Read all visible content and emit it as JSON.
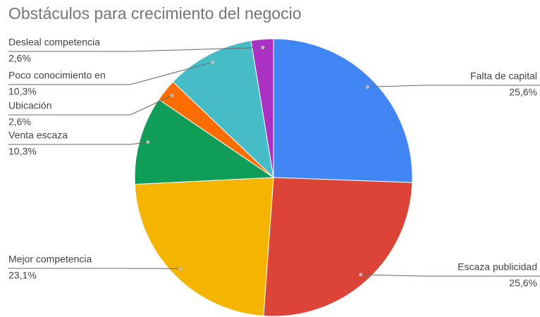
{
  "chart_data": {
    "type": "pie",
    "title": "Obstáculos para crecimiento del negocio",
    "categories": [
      "Falta de capital",
      "Escaza publicidad",
      "Mejor competencia",
      "Venta escaza",
      "Ubicación",
      "Poco conocimiento en",
      "Desleal competencia"
    ],
    "values": [
      25.6,
      25.6,
      23.1,
      10.3,
      2.6,
      10.3,
      2.6
    ],
    "value_labels": [
      "25,6%",
      "25,6%",
      "23,1%",
      "10,3%",
      "2,6%",
      "10,3%",
      "2,6%"
    ],
    "colors": [
      "#4285f4",
      "#db4437",
      "#f4b400",
      "#0f9d58",
      "#ff6d01",
      "#46bdc6",
      "#ab30c4"
    ]
  }
}
